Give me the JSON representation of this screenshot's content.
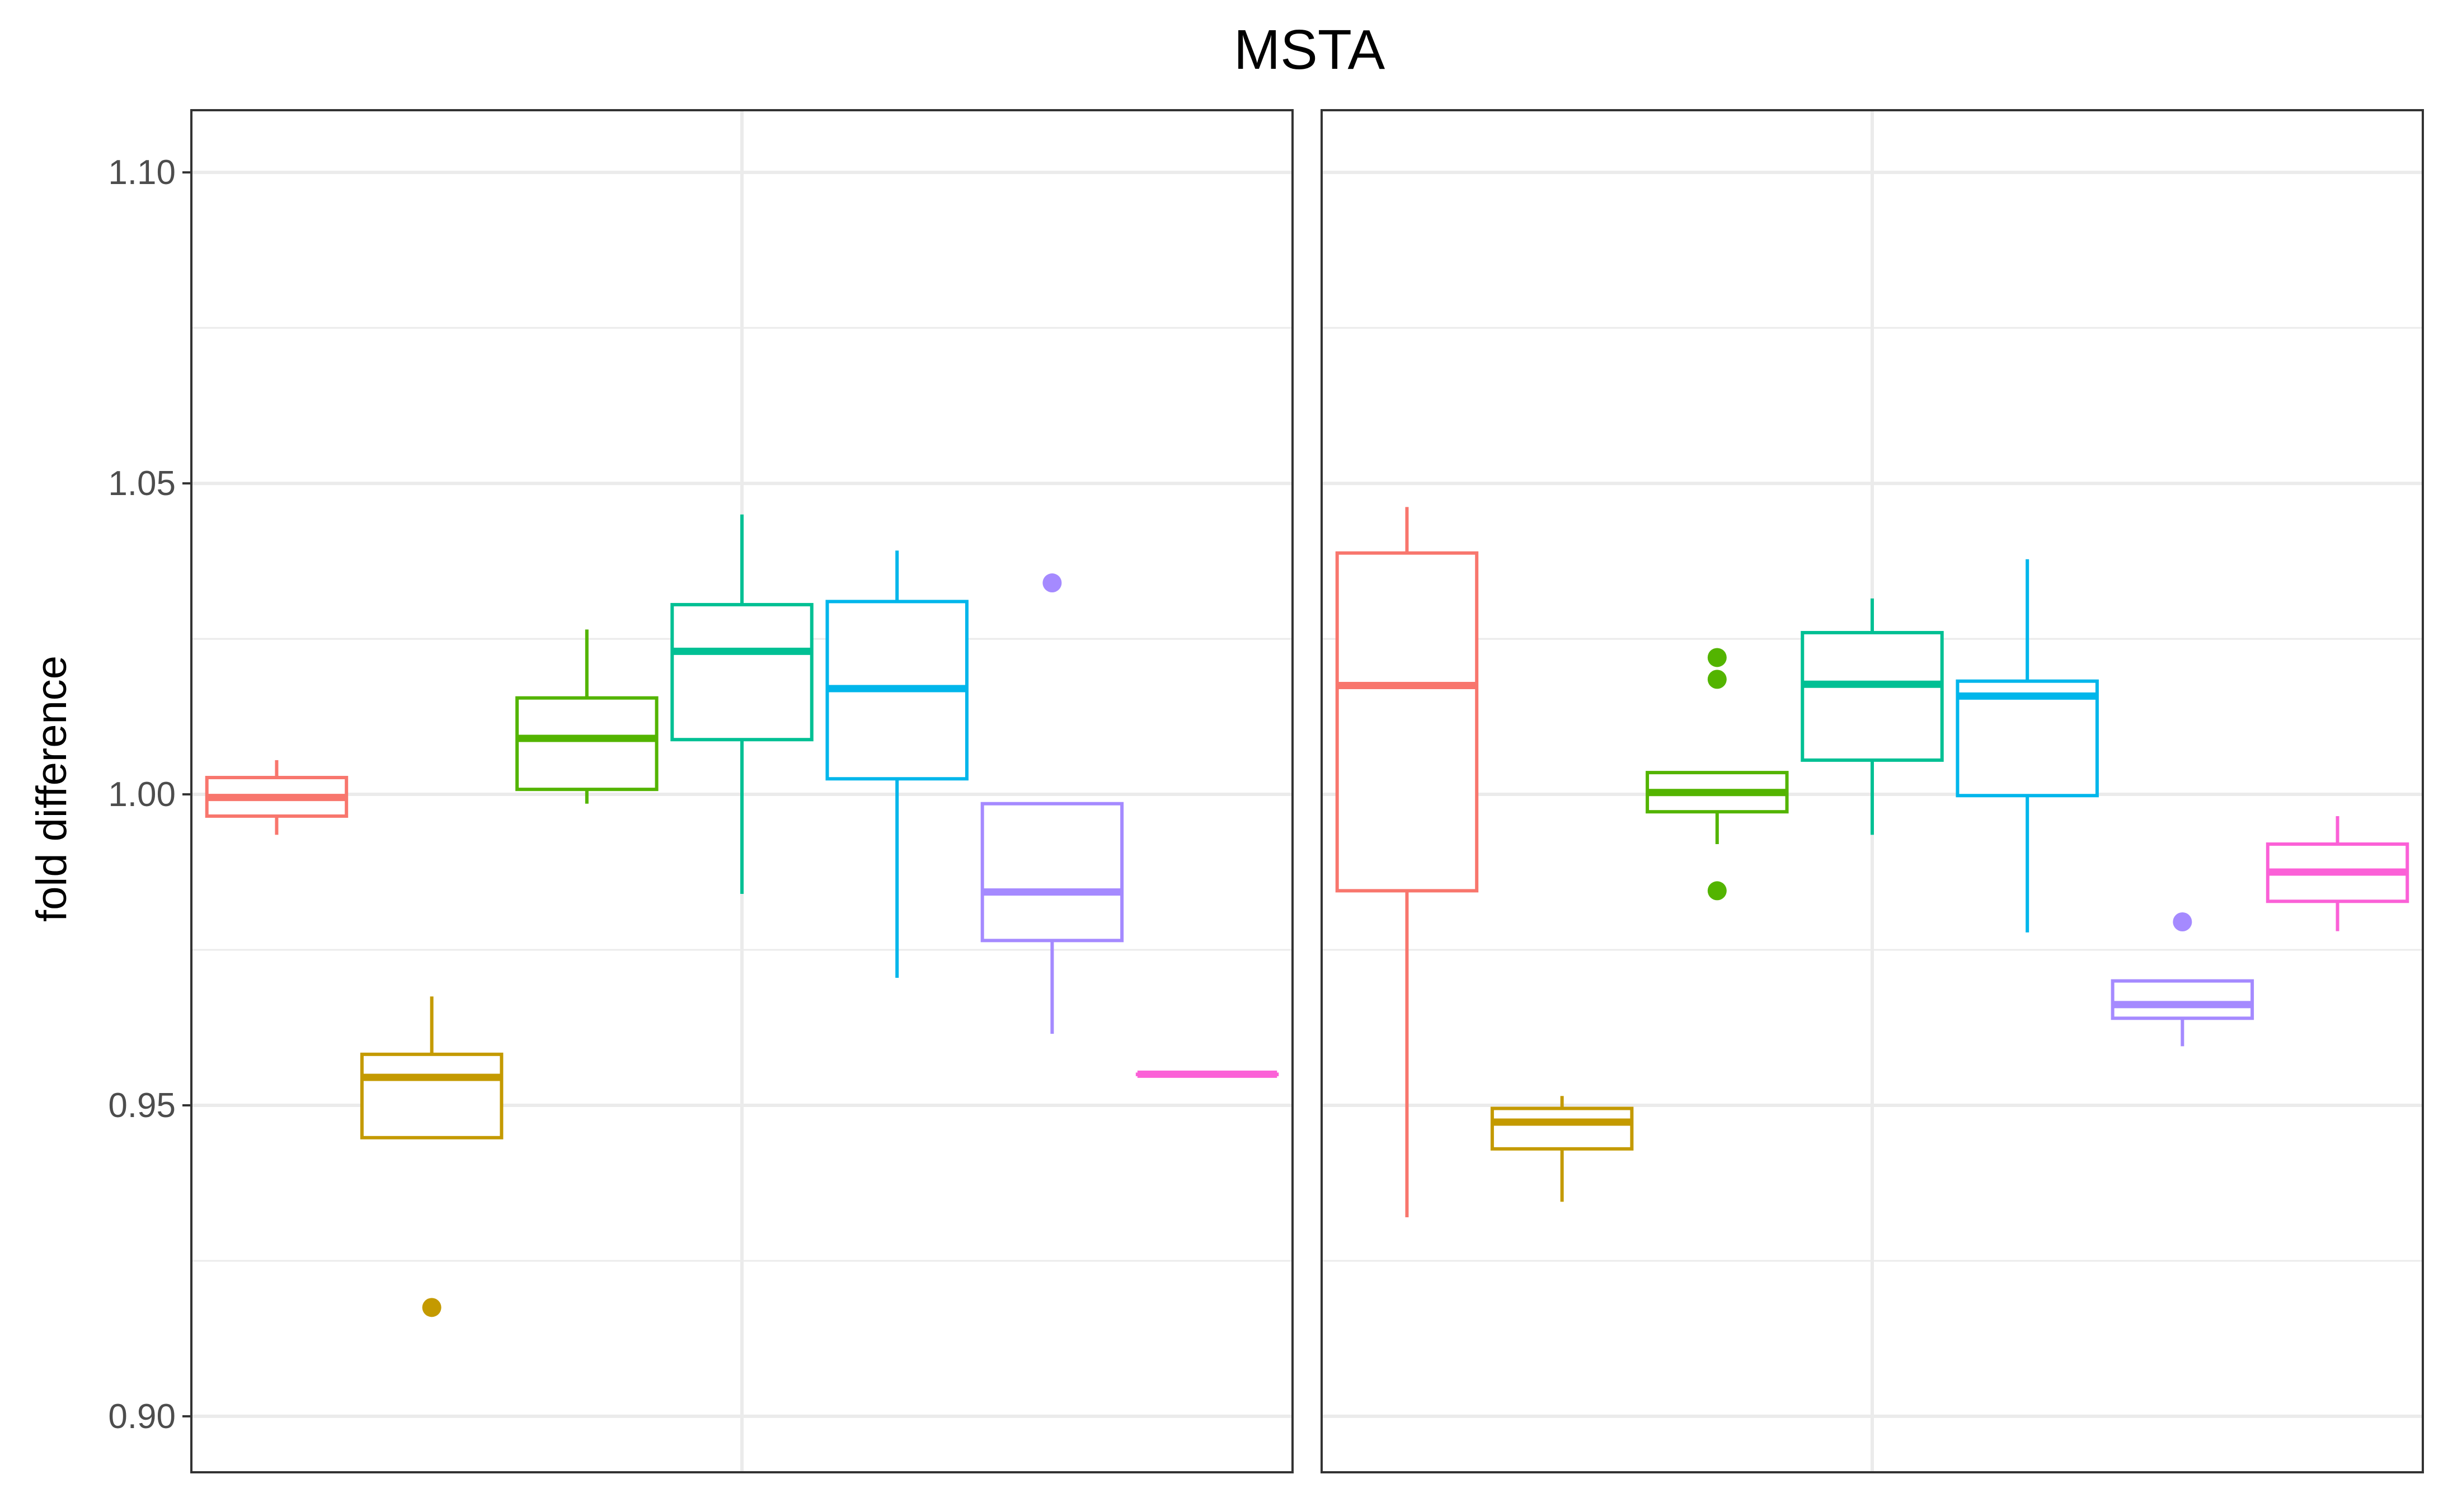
{
  "chart_data": {
    "type": "boxplot",
    "title": "MSTA",
    "ylabel": "fold difference",
    "xlabel": "",
    "ylim": [
      0.891,
      1.11
    ],
    "yticks": [
      0.9,
      0.95,
      1.0,
      1.05,
      1.1
    ],
    "ytick_labels": [
      "0.90",
      "0.95",
      "1.00",
      "1.05",
      "1.10"
    ],
    "grid": true,
    "legend": "none",
    "panels": [
      {
        "boxes": [
          {
            "color": "#F8766D",
            "whisker_low": 0.9935,
            "q1": 0.9965,
            "median": 0.9995,
            "q3": 1.0027,
            "whisker_high": 1.0055,
            "outliers": []
          },
          {
            "color": "#C49A00",
            "whisker_low": 0.9448,
            "q1": 0.9448,
            "median": 0.9545,
            "q3": 0.9582,
            "whisker_high": 0.9675,
            "outliers": [
              0.9175
            ]
          },
          {
            "color": "#53B400",
            "whisker_low": 0.9985,
            "q1": 1.0008,
            "median": 1.009,
            "q3": 1.0155,
            "whisker_high": 1.0265,
            "outliers": []
          },
          {
            "color": "#00C094",
            "whisker_low": 0.984,
            "q1": 1.0088,
            "median": 1.023,
            "q3": 1.0305,
            "whisker_high": 1.045,
            "outliers": []
          },
          {
            "color": "#00B6EB",
            "whisker_low": 0.9705,
            "q1": 1.0025,
            "median": 1.017,
            "q3": 1.031,
            "whisker_high": 1.0392,
            "outliers": []
          },
          {
            "color": "#A58AFF",
            "whisker_low": 0.9615,
            "q1": 0.9765,
            "median": 0.9843,
            "q3": 0.9985,
            "whisker_high": 0.9985,
            "outliers": [
              1.034
            ]
          },
          {
            "color": "#FB61D7",
            "whisker_low": 0.955,
            "q1": 0.955,
            "median": 0.955,
            "q3": 0.955,
            "whisker_high": 0.955,
            "outliers": []
          }
        ]
      },
      {
        "boxes": [
          {
            "color": "#F8766D",
            "whisker_low": 0.932,
            "q1": 0.9845,
            "median": 1.0175,
            "q3": 1.0388,
            "whisker_high": 1.0462,
            "outliers": []
          },
          {
            "color": "#C49A00",
            "whisker_low": 0.9345,
            "q1": 0.943,
            "median": 0.9473,
            "q3": 0.9495,
            "whisker_high": 0.9515,
            "outliers": []
          },
          {
            "color": "#53B400",
            "whisker_low": 0.992,
            "q1": 0.9972,
            "median": 1.0003,
            "q3": 1.0035,
            "whisker_high": 1.0035,
            "outliers": [
              0.9845,
              1.0185,
              1.022
            ]
          },
          {
            "color": "#00C094",
            "whisker_low": 0.9935,
            "q1": 1.0055,
            "median": 1.0177,
            "q3": 1.026,
            "whisker_high": 1.0315,
            "outliers": []
          },
          {
            "color": "#00B6EB",
            "whisker_low": 0.9778,
            "q1": 0.9998,
            "median": 1.0158,
            "q3": 1.0182,
            "whisker_high": 1.0378,
            "outliers": []
          },
          {
            "color": "#A58AFF",
            "whisker_low": 0.9595,
            "q1": 0.964,
            "median": 0.9662,
            "q3": 0.97,
            "whisker_high": 0.97,
            "outliers": [
              0.9795
            ]
          },
          {
            "color": "#FB61D7",
            "whisker_low": 0.978,
            "q1": 0.9828,
            "median": 0.9875,
            "q3": 0.992,
            "whisker_high": 0.9965,
            "outliers": []
          }
        ]
      }
    ]
  }
}
